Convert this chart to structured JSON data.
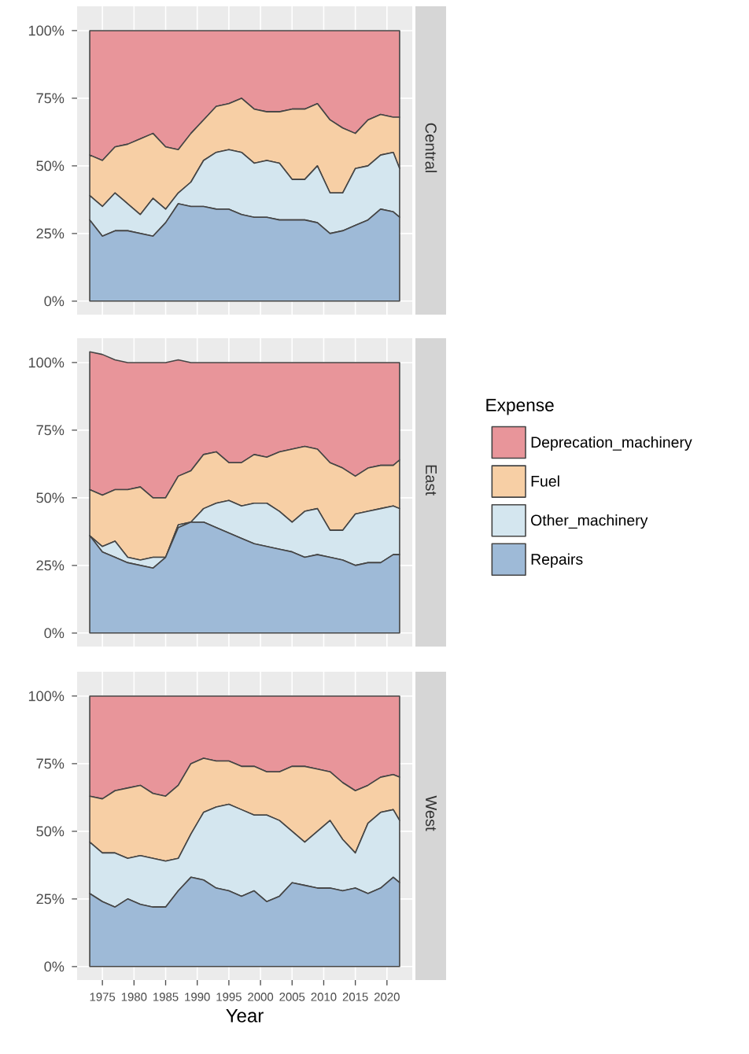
{
  "chart_data": [
    {
      "type": "area",
      "stacked": true,
      "y2label": "Central",
      "tick_labels": "y",
      "grid": true,
      "x": [
        1973,
        1975,
        1977,
        1979,
        1981,
        1983,
        1985,
        1987,
        1989,
        1991,
        1993,
        1995,
        1997,
        1999,
        2001,
        2003,
        2005,
        2007,
        2009,
        2011,
        2013,
        2015,
        2017,
        2019,
        2021,
        2022
      ],
      "series": [
        {
          "color": "#9ebad7",
          "values": [
            30,
            24,
            26,
            26,
            25,
            24,
            29,
            36,
            35,
            35,
            34,
            34,
            32,
            31,
            31,
            30,
            30,
            30,
            29,
            25,
            26,
            28,
            30,
            34,
            33,
            31
          ]
        },
        {
          "color": "#d4e6ef",
          "values": [
            9,
            11,
            14,
            10,
            7,
            14,
            5,
            4,
            9,
            17,
            21,
            22,
            23,
            20,
            21,
            21,
            15,
            15,
            21,
            15,
            14,
            21,
            20,
            20,
            22,
            18
          ]
        },
        {
          "color": "#f7cfa5",
          "values": [
            15,
            17,
            17,
            22,
            28,
            24,
            23,
            16,
            18,
            15,
            17,
            17,
            20,
            20,
            18,
            19,
            26,
            26,
            23,
            27,
            24,
            13,
            17,
            15,
            13,
            19
          ]
        },
        {
          "color": "#e8959a",
          "values": [
            46,
            48,
            43,
            42,
            40,
            38,
            43,
            44,
            38,
            33,
            28,
            27,
            25,
            29,
            30,
            30,
            29,
            29,
            27,
            33,
            36,
            38,
            33,
            31,
            32,
            32
          ]
        }
      ],
      "xlim": [
        1971,
        2024
      ],
      "ylim": [
        -5,
        109
      ],
      "xticks": [
        1975,
        1980,
        1985,
        1990,
        1995,
        2000,
        2005,
        2010,
        2015,
        2020
      ],
      "yticks": [
        {
          "value": 0,
          "label": "0%"
        },
        {
          "value": 25,
          "label": "25%"
        },
        {
          "value": 50,
          "label": "50%"
        },
        {
          "value": 75,
          "label": "75%"
        },
        {
          "value": 100,
          "label": "100%"
        }
      ]
    },
    {
      "type": "area",
      "stacked": true,
      "y2label": "East",
      "tick_labels": "y",
      "grid": true,
      "legend": "right",
      "legend_title": "Expense",
      "x": [
        1973,
        1975,
        1977,
        1979,
        1981,
        1983,
        1985,
        1987,
        1989,
        1991,
        1993,
        1995,
        1997,
        1999,
        2001,
        2003,
        2005,
        2007,
        2009,
        2011,
        2013,
        2015,
        2017,
        2019,
        2021,
        2022
      ],
      "series": [
        {
          "name": "Repairs",
          "color": "#9ebad7",
          "values": [
            36,
            30,
            28,
            26,
            25,
            24,
            28,
            39,
            41,
            41,
            39,
            37,
            35,
            33,
            32,
            31,
            30,
            28,
            29,
            28,
            27,
            25,
            26,
            26,
            29,
            29
          ]
        },
        {
          "name": "Other_machinery",
          "color": "#d4e6ef",
          "values": [
            0,
            2,
            6,
            2,
            2,
            4,
            0,
            1,
            0,
            5,
            9,
            12,
            12,
            15,
            16,
            14,
            11,
            17,
            17,
            10,
            11,
            19,
            19,
            20,
            18,
            17
          ]
        },
        {
          "name": "Fuel",
          "color": "#f7cfa5",
          "values": [
            17,
            19,
            19,
            25,
            27,
            22,
            22,
            18,
            19,
            20,
            19,
            14,
            16,
            18,
            17,
            22,
            27,
            24,
            22,
            25,
            23,
            14,
            16,
            16,
            15,
            18
          ]
        },
        {
          "name": "Deprecation_machinery",
          "color": "#e8959a",
          "values": [
            51,
            52,
            48,
            47,
            46,
            50,
            50,
            43,
            40,
            34,
            33,
            37,
            37,
            34,
            35,
            33,
            32,
            31,
            32,
            37,
            39,
            42,
            39,
            38,
            38,
            36
          ]
        }
      ],
      "xlim": [
        1971,
        2024
      ],
      "ylim": [
        -5,
        109
      ],
      "xticks": [
        1975,
        1980,
        1985,
        1990,
        1995,
        2000,
        2005,
        2010,
        2015,
        2020
      ],
      "yticks": [
        {
          "value": 0,
          "label": "0%"
        },
        {
          "value": 25,
          "label": "25%"
        },
        {
          "value": 50,
          "label": "50%"
        },
        {
          "value": 75,
          "label": "75%"
        },
        {
          "value": 100,
          "label": "100%"
        }
      ]
    },
    {
      "type": "area",
      "stacked": true,
      "y2label": "West",
      "xlabel": "Year",
      "grid": true,
      "x": [
        1973,
        1975,
        1977,
        1979,
        1981,
        1983,
        1985,
        1987,
        1989,
        1991,
        1993,
        1995,
        1997,
        1999,
        2001,
        2003,
        2005,
        2007,
        2009,
        2011,
        2013,
        2015,
        2017,
        2019,
        2021,
        2022
      ],
      "series": [
        {
          "color": "#9ebad7",
          "values": [
            27,
            24,
            22,
            25,
            23,
            22,
            22,
            28,
            33,
            32,
            29,
            28,
            26,
            28,
            24,
            26,
            31,
            30,
            29,
            29,
            28,
            29,
            27,
            29,
            33,
            31
          ]
        },
        {
          "color": "#d4e6ef",
          "values": [
            19,
            18,
            20,
            15,
            18,
            18,
            17,
            12,
            16,
            25,
            30,
            32,
            32,
            28,
            32,
            28,
            19,
            16,
            21,
            25,
            19,
            13,
            26,
            28,
            25,
            23
          ]
        },
        {
          "color": "#f7cfa5",
          "values": [
            17,
            20,
            23,
            26,
            26,
            24,
            24,
            27,
            26,
            20,
            17,
            16,
            16,
            18,
            16,
            18,
            24,
            28,
            23,
            18,
            21,
            23,
            14,
            13,
            13,
            16
          ]
        },
        {
          "color": "#e8959a",
          "values": [
            37,
            38,
            35,
            34,
            33,
            36,
            37,
            33,
            25,
            23,
            24,
            24,
            26,
            26,
            28,
            28,
            26,
            26,
            27,
            28,
            32,
            35,
            33,
            30,
            29,
            30
          ]
        }
      ],
      "xlim": [
        1971,
        2024
      ],
      "ylim": [
        -5,
        109
      ],
      "xticks": [
        1975,
        1980,
        1985,
        1990,
        1995,
        2000,
        2005,
        2010,
        2015,
        2020
      ],
      "yticks": [
        {
          "value": 0,
          "label": "0%"
        },
        {
          "value": 25,
          "label": "25%"
        },
        {
          "value": 50,
          "label": "50%"
        },
        {
          "value": 75,
          "label": "75%"
        },
        {
          "value": 100,
          "label": "100%"
        }
      ]
    }
  ]
}
